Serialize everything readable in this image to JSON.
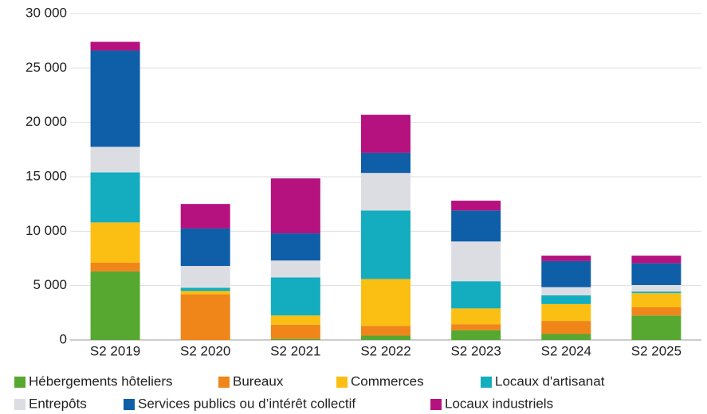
{
  "chart_data": {
    "type": "stacked_bar",
    "categories": [
      "S2 2019",
      "S2 2020",
      "S2 2021",
      "S2 2022",
      "S2 2023",
      "S2 2024",
      "S2 2025"
    ],
    "series": [
      {
        "name": "Hébergements hôteliers",
        "color": "#57a831",
        "values": [
          6300,
          0,
          100,
          400,
          900,
          550,
          2250
        ]
      },
      {
        "name": "Bureaux",
        "color": "#f0861a",
        "values": [
          800,
          4200,
          1300,
          900,
          550,
          1200,
          750
        ]
      },
      {
        "name": "Commerces",
        "color": "#fbbf14",
        "values": [
          3700,
          300,
          850,
          4300,
          1450,
          1550,
          1300
        ]
      },
      {
        "name": "Locaux d'artisanat",
        "color": "#14adc0",
        "values": [
          4600,
          300,
          3500,
          6300,
          2500,
          800,
          150
        ]
      },
      {
        "name": "Entrepôts",
        "color": "#dcdde3",
        "values": [
          2350,
          2000,
          1550,
          3450,
          3650,
          750,
          600
        ]
      },
      {
        "name": "Services publics ou d’intérêt collectif",
        "color": "#0f5ea8",
        "values": [
          8850,
          3450,
          2500,
          1850,
          2850,
          2400,
          2000
        ]
      },
      {
        "name": "Locaux industriels",
        "color": "#b5127f",
        "values": [
          800,
          2250,
          5050,
          3500,
          900,
          500,
          700
        ]
      }
    ],
    "ylim": [
      0,
      30000
    ],
    "yticks": [
      0,
      {
        "value": 5000,
        "label": "5 000"
      },
      {
        "value": 10000,
        "label": "10 000"
      },
      {
        "value": 15000,
        "label": "15 000"
      },
      {
        "value": 20000,
        "label": "20 000"
      },
      {
        "value": 25000,
        "label": "25 000"
      },
      {
        "value": 30000,
        "label": "30 000"
      }
    ],
    "grid": true,
    "legend": "bottom"
  }
}
